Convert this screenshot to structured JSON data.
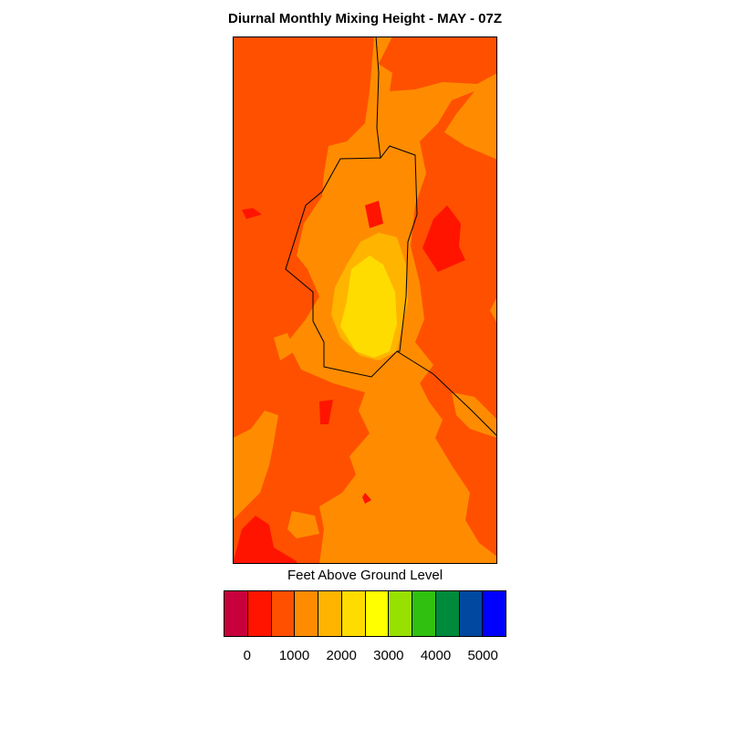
{
  "title": "Diurnal Monthly Mixing Height - MAY - 07Z",
  "colorbar": {
    "label": "Feet Above Ground Level",
    "colors": [
      "#c8003c",
      "#ff1400",
      "#ff5000",
      "#ff8c00",
      "#ffb400",
      "#ffdc00",
      "#ffff00",
      "#98e000",
      "#30c010",
      "#008a3c",
      "#0048a0",
      "#0000ff"
    ],
    "boxes": [
      "#c8003c",
      "#ff1400",
      "#ff5000",
      "#ff8c00",
      "#ffb400",
      "#ffdc00",
      "#ffff00",
      "#98e000",
      "#30c010",
      "#008a3c",
      "#0048a0",
      "#0000ff"
    ],
    "tick_labels": [
      "0",
      "1000",
      "2000",
      "3000",
      "4000",
      "5000"
    ]
  },
  "colors": {
    "background_field": "#ff5000",
    "field_1500": "#ff8c00",
    "field_2000": "#ffb400",
    "field_2500": "#ffdc00",
    "field_500": "#ff1400"
  }
}
